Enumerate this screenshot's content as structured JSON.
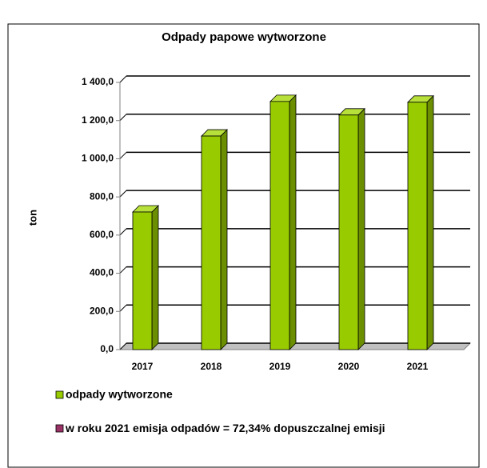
{
  "chart_data": {
    "type": "bar",
    "title": "Odpady papowe wytworzone",
    "y_label": "ton",
    "categories": [
      "2017",
      "2018",
      "2019",
      "2020",
      "2021"
    ],
    "series": [
      {
        "name": "odpady wytworzone",
        "color": "#99cc00",
        "values": [
          721,
          1119,
          1300,
          1229,
          1296
        ]
      }
    ],
    "legend_notes": [
      {
        "name": "w roku 2021 emisja odpadów = 72,34% dopuszczalnej emisji",
        "color": "#993366"
      }
    ],
    "ylim": [
      0,
      1400
    ],
    "yticks": [
      {
        "value": 0,
        "label": "0,0"
      },
      {
        "value": 200,
        "label": "200,0"
      },
      {
        "value": 400,
        "label": "400,0"
      },
      {
        "value": 600,
        "label": "600,0"
      },
      {
        "value": 800,
        "label": "800,0"
      },
      {
        "value": 1000,
        "label": "1 000,0"
      },
      {
        "value": 1200,
        "label": "1 200,0"
      },
      {
        "value": 1400,
        "label": "1 400,0"
      }
    ],
    "grid": true
  }
}
